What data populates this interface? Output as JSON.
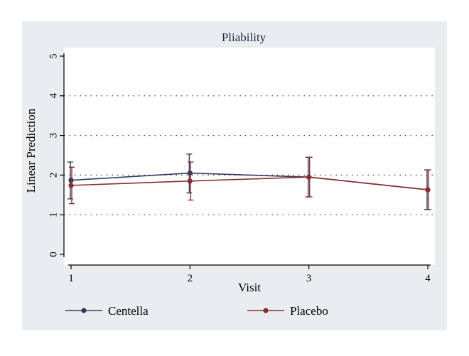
{
  "chart_data": {
    "type": "line",
    "title": "Pliability",
    "xlabel": "Visit",
    "ylabel": "Linear Prediction",
    "x": [
      1,
      2,
      3,
      4
    ],
    "xlim": [
      1,
      4
    ],
    "ylim": [
      0,
      5
    ],
    "y_ticks": [
      0,
      1,
      2,
      3,
      4,
      5
    ],
    "x_ticks": [
      1,
      2,
      3,
      4
    ],
    "grid": true,
    "legend_position": "bottom",
    "series": [
      {
        "name": "Centella",
        "color": "#2e3b5e",
        "values": [
          1.87,
          2.05,
          1.95,
          1.63
        ],
        "ci_low": [
          1.4,
          1.55,
          1.45,
          1.13
        ],
        "ci_high": [
          2.33,
          2.53,
          2.45,
          2.13
        ]
      },
      {
        "name": "Placebo",
        "color": "#8b2c2c",
        "values": [
          1.74,
          1.85,
          1.95,
          1.63
        ],
        "ci_low": [
          1.28,
          1.37,
          1.45,
          1.13
        ],
        "ci_high": [
          2.2,
          2.33,
          2.45,
          2.13
        ]
      }
    ]
  }
}
